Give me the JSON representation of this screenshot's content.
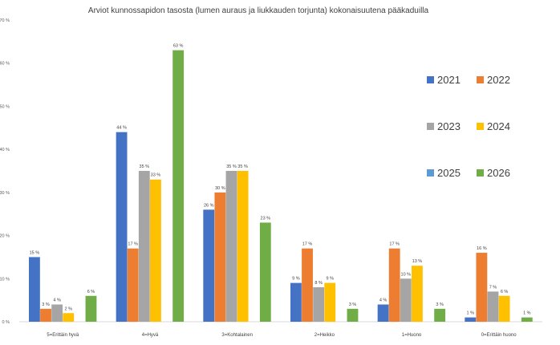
{
  "chart_data": {
    "type": "bar",
    "title": "Arviot kunnossapidon tasosta (lumen auraus ja liukkauden torjunta) kokonaisuutena pääkaduilla",
    "xlabel": "",
    "ylabel": "",
    "ylim": [
      0,
      70
    ],
    "yticks": [
      "0 %",
      "10 %",
      "20 %",
      "30 %",
      "40 %",
      "50 %",
      "60 %",
      "70 %"
    ],
    "grid": false,
    "legend_position": "right",
    "categories": [
      "5=Erittäin hyvä",
      "4=Hyvä",
      "3=Kohtalainen",
      "2=Heikko",
      "1=Huono",
      "0=Erittäin huono"
    ],
    "series": [
      {
        "name": "2021",
        "color": "#4472c4",
        "values": [
          15,
          44,
          26,
          9,
          4,
          1
        ],
        "labels": [
          "15 %",
          "44 %",
          "26 %",
          "9 %",
          "4 %",
          "1 %"
        ]
      },
      {
        "name": "2022",
        "color": "#ed7d31",
        "values": [
          3,
          17,
          30,
          17,
          17,
          16
        ],
        "labels": [
          "3 %",
          "17 %",
          "30 %",
          "17 %",
          "17 %",
          "16 %"
        ]
      },
      {
        "name": "2023",
        "color": "#a5a5a5",
        "values": [
          4,
          35,
          35,
          8,
          10,
          7
        ],
        "labels": [
          "4 %",
          "35 %",
          "35 %",
          "8 %",
          "10 %",
          "7 %"
        ]
      },
      {
        "name": "2024",
        "color": "#ffc000",
        "values": [
          2,
          33,
          35,
          9,
          13,
          6
        ],
        "labels": [
          "2 %",
          "33 %",
          "35 %",
          "9 %",
          "13 %",
          "6 %"
        ]
      },
      {
        "name": "2025",
        "color": "#5b9bd5",
        "values": [
          null,
          null,
          null,
          null,
          null,
          null
        ],
        "labels": [
          "",
          "",
          "",
          "",
          "",
          ""
        ]
      },
      {
        "name": "2026",
        "color": "#70ad47",
        "values": [
          6,
          63,
          23,
          3,
          3,
          1
        ],
        "labels": [
          "6 %",
          "63 %",
          "23 %",
          "3 %",
          "3 %",
          "1 %"
        ]
      }
    ]
  }
}
